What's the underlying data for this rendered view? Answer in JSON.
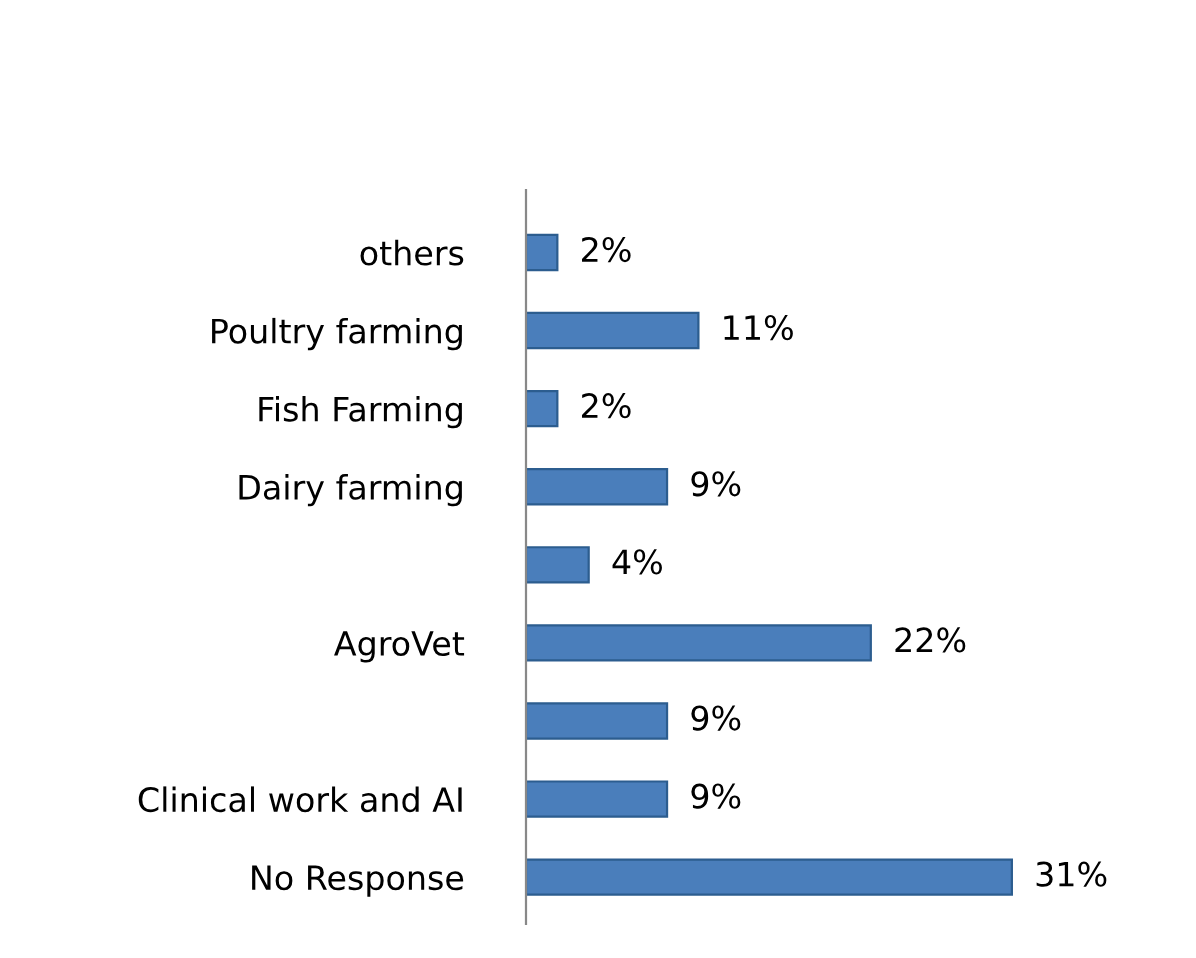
{
  "chart_data": {
    "type": "bar",
    "orientation": "horizontal",
    "categories": [
      "others",
      "Poultry farming",
      "Fish Farming",
      "Dairy farming",
      null,
      "AgroVet",
      null,
      "Clinical work and AI",
      "No Response"
    ],
    "values": [
      2,
      11,
      2,
      9,
      4,
      22,
      9,
      9,
      31
    ],
    "value_labels": [
      "2%",
      "11%",
      "2%",
      "9%",
      "4%",
      "22%",
      "9%",
      "9%",
      "31%"
    ],
    "color": "#4a7ebb",
    "grid": false,
    "legend": false,
    "tick_labels": "y"
  }
}
